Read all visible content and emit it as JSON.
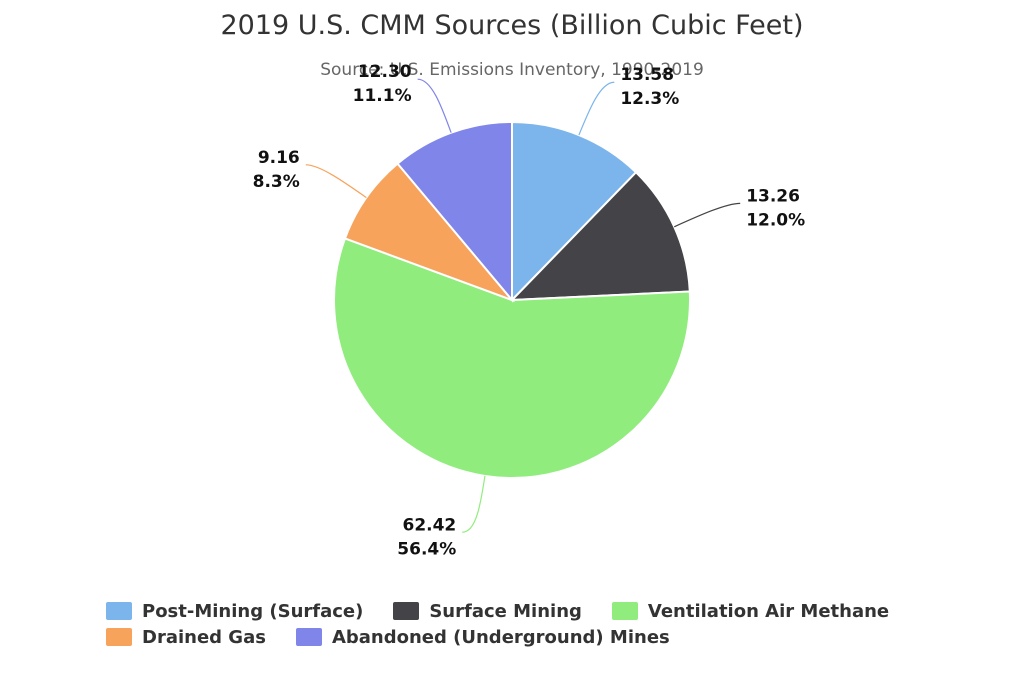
{
  "chart_data": {
    "type": "pie",
    "title": "2019 U.S. CMM Sources (Billion Cubic Feet)",
    "subtitle": "Source: U.S. Emissions Inventory, 1990-2019",
    "slices": [
      {
        "name": "Post-Mining (Surface)",
        "value": 13.58,
        "value_label": "13.58",
        "percent_label": "12.3%",
        "color": "#7cb5ec"
      },
      {
        "name": "Surface Mining",
        "value": 13.26,
        "value_label": "13.26",
        "percent_label": "12.0%",
        "color": "#434348"
      },
      {
        "name": "Ventilation Air Methane",
        "value": 62.42,
        "value_label": "62.42",
        "percent_label": "56.4%",
        "color": "#90ed7d"
      },
      {
        "name": "Drained Gas",
        "value": 9.16,
        "value_label": "9.16",
        "percent_label": "8.3%",
        "color": "#f7a35c"
      },
      {
        "name": "Abandoned (Underground) Mines",
        "value": 12.3,
        "value_label": "12.30",
        "percent_label": "11.1%",
        "color": "#8085e9"
      }
    ],
    "legend_position": "bottom"
  }
}
